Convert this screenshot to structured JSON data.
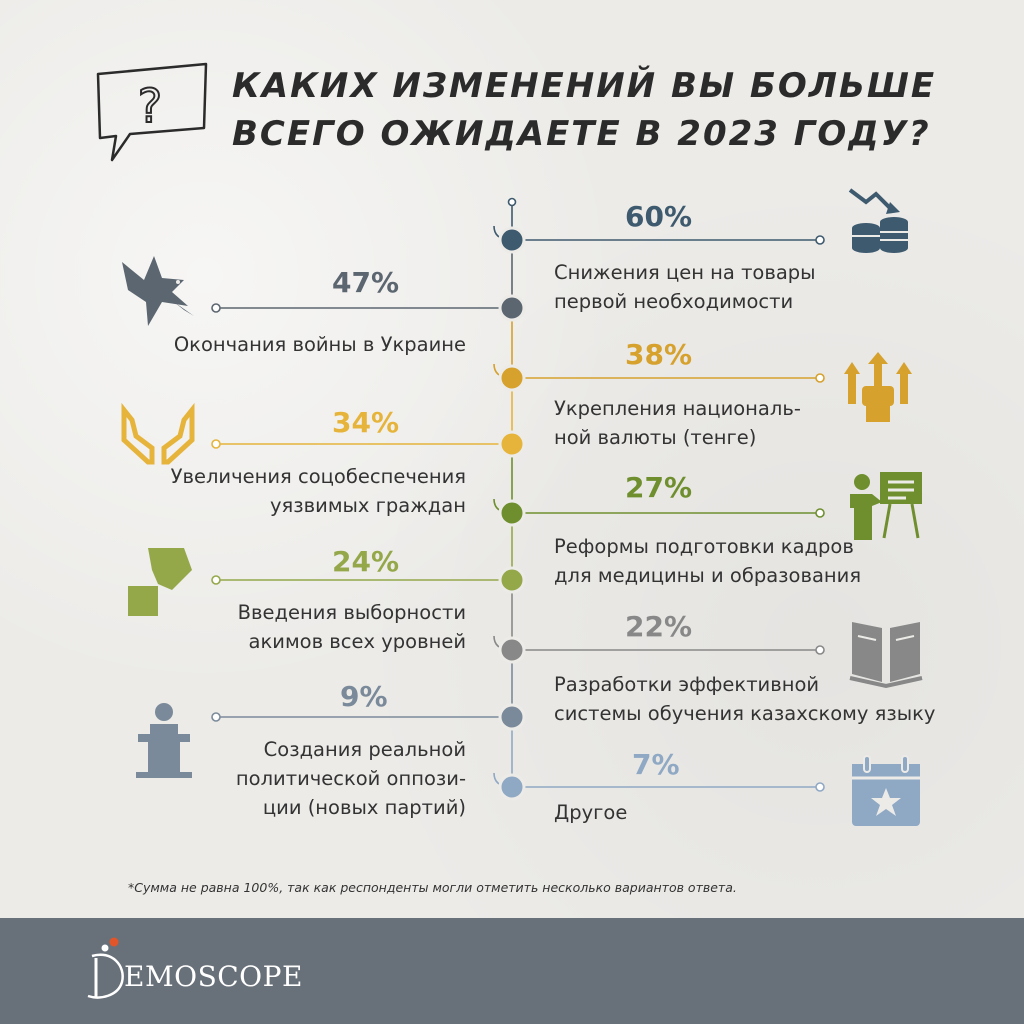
{
  "title": {
    "line1": "КАКИХ ИЗМЕНЕНИЙ ВЫ БОЛЬШЕ",
    "line2": "ВСЕГО ОЖИДАЕТЕ В 2023 ГОДУ?"
  },
  "chart_data": {
    "type": "bar",
    "title": "КАКИХ ИЗМЕНЕНИЙ ВЫ БОЛЬШЕ ВСЕГО ОЖИДАЕТЕ В 2023 ГОДУ?",
    "unit": "%",
    "items": [
      {
        "value_label": "60%",
        "value": 60,
        "label_lines": [
          "Снижения цен на товары",
          "первой необходимости"
        ],
        "side": "right",
        "color": "#3e5a6e",
        "icon": "coins-price-drop-icon"
      },
      {
        "value_label": "47%",
        "value": 47,
        "label_lines": [
          "Окончания войны в Украине"
        ],
        "side": "left",
        "color": "#5c6670",
        "icon": "dove-of-peace-icon"
      },
      {
        "value_label": "38%",
        "value": 38,
        "label_lines": [
          "Укрепления националь-",
          "ной валюты (тенге)"
        ],
        "side": "right",
        "color": "#d6a12c",
        "icon": "strong-currency-icon"
      },
      {
        "value_label": "34%",
        "value": 34,
        "label_lines": [
          "Увеличения соцобеспечения",
          "уязвимых граждан"
        ],
        "side": "left",
        "color": "#e6b43a",
        "icon": "hands-heart-icon"
      },
      {
        "value_label": "27%",
        "value": 27,
        "label_lines": [
          "Реформы подготовки кадров",
          "для медицины и образования"
        ],
        "side": "right",
        "color": "#6f8f2f",
        "icon": "teacher-board-icon"
      },
      {
        "value_label": "24%",
        "value": 24,
        "label_lines": [
          "Введения выборности",
          "акимов всех уровней"
        ],
        "side": "left",
        "color": "#94a84a",
        "icon": "ballot-vote-icon"
      },
      {
        "value_label": "22%",
        "value": 22,
        "label_lines": [
          "Разработки эффективной",
          "системы обучения казахскому языку"
        ],
        "side": "right",
        "color": "#888888",
        "icon": "open-book-icon"
      },
      {
        "value_label": "9%",
        "value": 9,
        "label_lines": [
          "Создания реальной",
          "политической оппози-",
          "ции (новых партий)"
        ],
        "side": "left",
        "color": "#7b8a9a",
        "icon": "podium-speaker-icon"
      },
      {
        "value_label": "7%",
        "value": 7,
        "label_lines": [
          "Другое"
        ],
        "side": "right",
        "color": "#8fa8c4",
        "icon": "calendar-star-icon"
      }
    ]
  },
  "footnote": "*Сумма не равна 100%, так как респонденты могли отметить несколько вариантов ответа.",
  "logo": {
    "text": "EMOSCOPE",
    "accent_color": "#e0562a",
    "bar_color": "#687079"
  }
}
